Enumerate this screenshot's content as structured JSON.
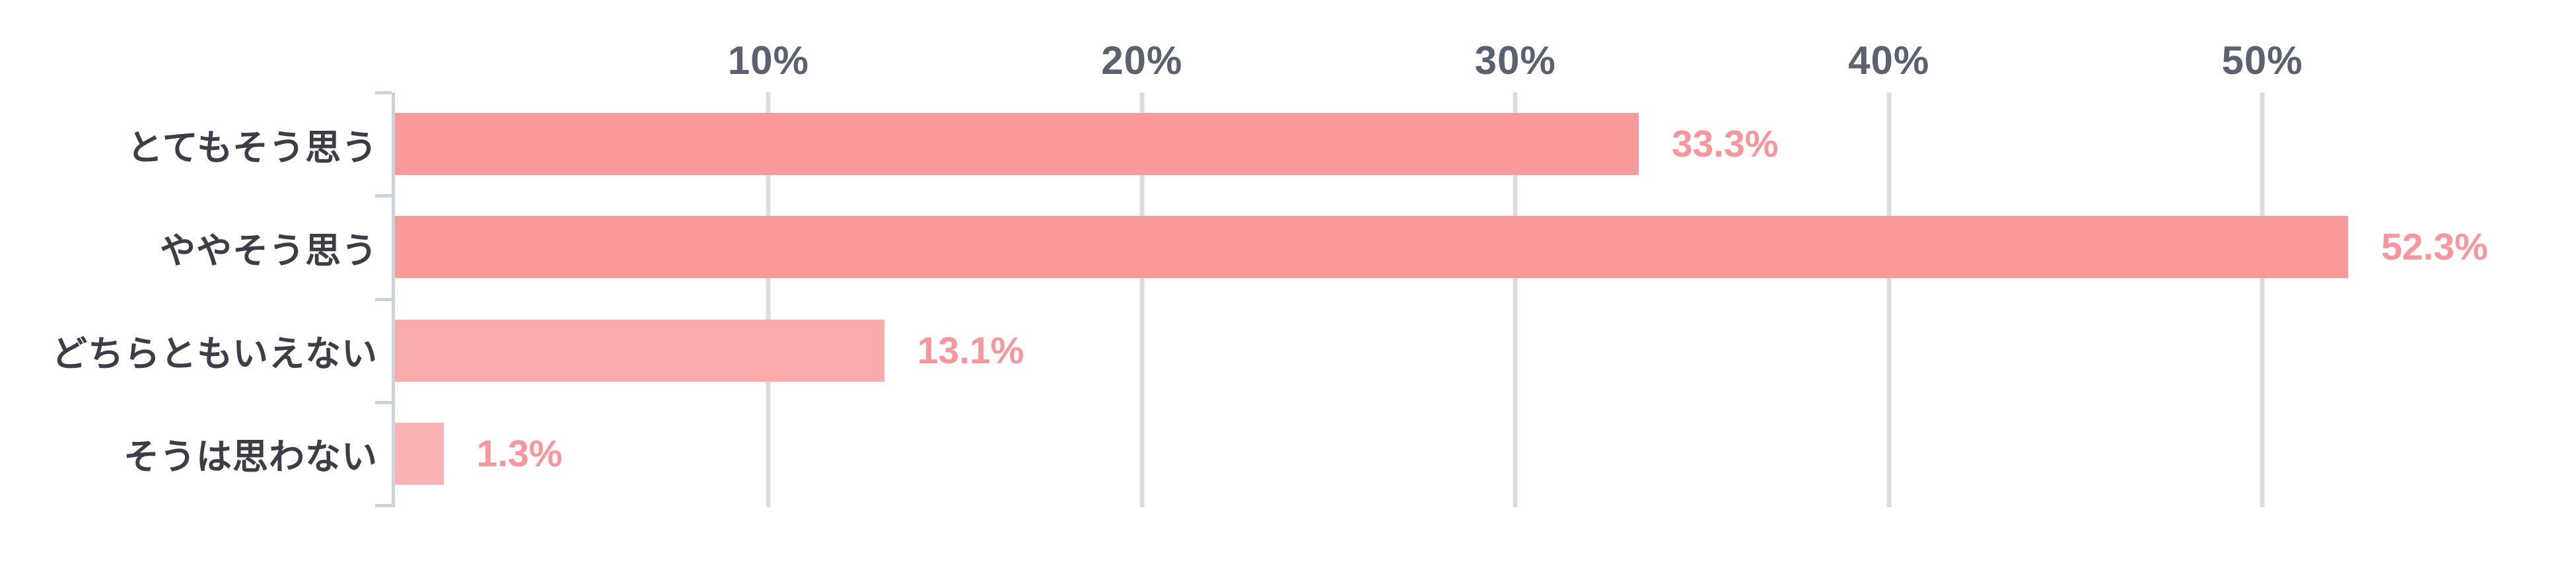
{
  "chart": {
    "background_color": "#ffffff",
    "axis_color": "#cbd3dd",
    "gridline_color": "#dcdcdc",
    "tick_label_color": "#5a6270",
    "category_label_color": "#3d3d47",
    "value_label_color": "#f9969c"
  },
  "chart_data": {
    "type": "bar",
    "orientation": "horizontal",
    "title": "",
    "xlabel": "",
    "ylabel": "",
    "grid": true,
    "legend": false,
    "xlim": [
      0,
      58.4
    ],
    "categories": [
      "とてもそう思う",
      "ややそう思う",
      "どちらともいえない",
      "そうは思わない"
    ],
    "values": [
      33.3,
      52.3,
      13.1,
      1.3
    ],
    "value_labels": [
      "33.3%",
      "52.3%",
      "13.1%",
      "1.3%"
    ],
    "bar_colors": [
      "#fa9999",
      "#fa9999",
      "#fbabab",
      "#fcb2b2"
    ],
    "x_ticks": [
      {
        "value": 10,
        "label": "10%"
      },
      {
        "value": 20,
        "label": "20%"
      },
      {
        "value": 30,
        "label": "30%"
      },
      {
        "value": 40,
        "label": "40%"
      },
      {
        "value": 50,
        "label": "50%"
      }
    ]
  }
}
